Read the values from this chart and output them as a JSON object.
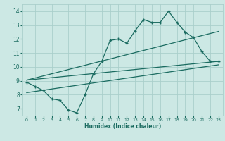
{
  "title": "",
  "xlabel": "Humidex (Indice chaleur)",
  "ylabel": "",
  "xlim": [
    -0.5,
    23.5
  ],
  "ylim": [
    6.5,
    14.5
  ],
  "xticks": [
    0,
    1,
    2,
    3,
    4,
    5,
    6,
    7,
    8,
    9,
    10,
    11,
    12,
    13,
    14,
    15,
    16,
    17,
    18,
    19,
    20,
    21,
    22,
    23
  ],
  "yticks": [
    7,
    8,
    9,
    10,
    11,
    12,
    13,
    14
  ],
  "bg_color": "#cce8e4",
  "grid_color": "#aacfcb",
  "line_color": "#1a6b60",
  "main_x": [
    0,
    1,
    2,
    3,
    4,
    5,
    6,
    7,
    8,
    9,
    10,
    11,
    12,
    13,
    14,
    15,
    16,
    17,
    18,
    19,
    20,
    21,
    22,
    23
  ],
  "main_y": [
    8.9,
    8.6,
    8.3,
    7.7,
    7.6,
    6.9,
    6.7,
    8.0,
    9.5,
    10.4,
    11.9,
    12.0,
    11.7,
    12.6,
    13.4,
    13.2,
    13.2,
    14.0,
    13.2,
    12.5,
    12.1,
    11.1,
    10.4,
    10.4
  ],
  "trend1_x": [
    0,
    23
  ],
  "trend1_y": [
    9.05,
    10.4
  ],
  "trend2_x": [
    0,
    23
  ],
  "trend2_y": [
    9.05,
    12.55
  ],
  "trend3_x": [
    0,
    23
  ],
  "trend3_y": [
    8.15,
    10.15
  ]
}
